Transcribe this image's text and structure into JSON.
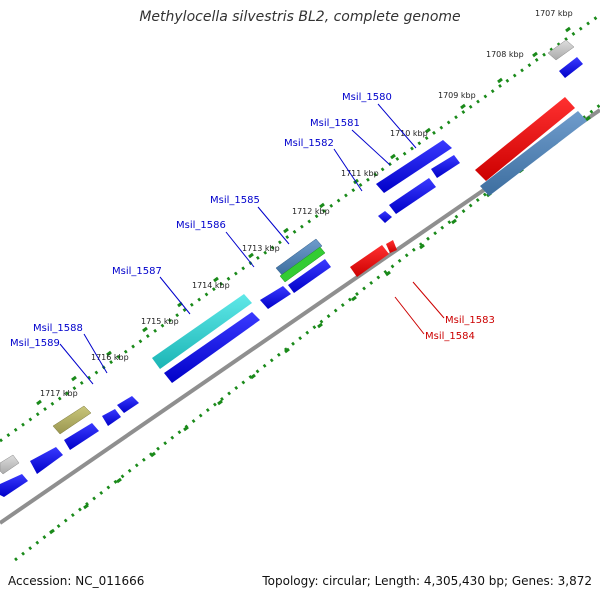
{
  "title": "Methylocella silvestris BL2, complete genome",
  "footer": {
    "accession": "Accession: NC_011666",
    "summary": "Topology: circular; Length: 4,305,430 bp; Genes: 3,872"
  },
  "colors": {
    "cds": "#0000dd",
    "rna": "#ee0000",
    "label_blue": "#0000cc",
    "label_red": "#cc0000",
    "ruler": "#1a8a1a",
    "backbone": "#8f8f8f"
  },
  "kbp_labels": [
    "1707 kbp",
    "1708 kbp",
    "1709 kbp",
    "1710 kbp",
    "1711 kbp",
    "1712 kbp",
    "1713 kbp",
    "1714 kbp",
    "1715 kbp",
    "1716 kbp",
    "1717 kbp"
  ],
  "gene_labels": [
    "Msil_1580",
    "Msil_1581",
    "Msil_1582",
    "Msil_1585",
    "Msil_1586",
    "Msil_1587",
    "Msil_1588",
    "Msil_1589",
    "Msil_1583",
    "Msil_1584"
  ]
}
